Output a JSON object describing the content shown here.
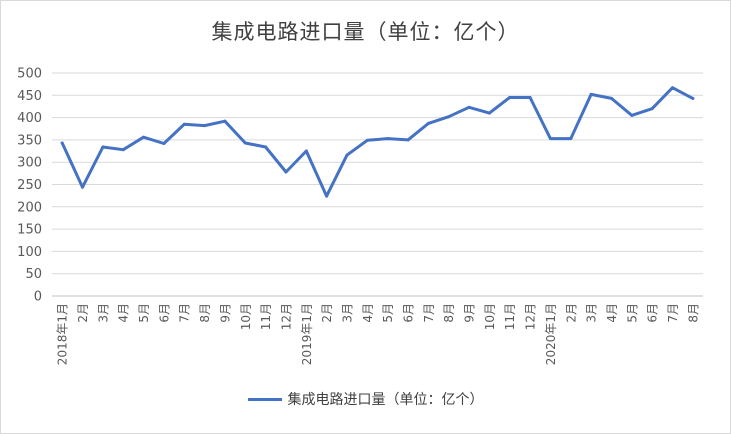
{
  "chart_data": {
    "type": "line",
    "title": "集成电路进口量（单位：亿个）",
    "xlabel": "",
    "ylabel": "",
    "ylim": [
      0,
      500
    ],
    "yticks": [
      0,
      50,
      100,
      150,
      200,
      250,
      300,
      350,
      400,
      450,
      500
    ],
    "grid": true,
    "legend_position": "bottom",
    "categories": [
      "2018年1月",
      "2月",
      "3月",
      "4月",
      "5月",
      "6月",
      "7月",
      "8月",
      "9月",
      "10月",
      "11月",
      "12月",
      "2019年1月",
      "2月",
      "3月",
      "4月",
      "5月",
      "6月",
      "7月",
      "8月",
      "9月",
      "10月",
      "11月",
      "12月",
      "2020年1月",
      "2月",
      "3月",
      "4月",
      "5月",
      "6月",
      "7月",
      "8月"
    ],
    "series": [
      {
        "name": "集成电路进口量（单位：亿个）",
        "color": "#4472c4",
        "values": [
          343,
          244,
          334,
          328,
          356,
          342,
          385,
          382,
          392,
          343,
          334,
          278,
          325,
          224,
          316,
          349,
          353,
          350,
          387,
          402,
          423,
          410,
          445,
          445,
          353,
          353,
          452,
          443,
          405,
          420,
          467,
          443
        ]
      }
    ]
  }
}
